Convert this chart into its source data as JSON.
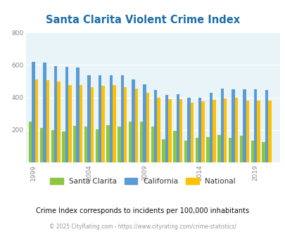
{
  "title": "Santa Clarita Violent Crime Index",
  "years": [
    1999,
    2000,
    2001,
    2002,
    2003,
    2004,
    2005,
    2006,
    2007,
    2008,
    2009,
    2010,
    2011,
    2012,
    2013,
    2014,
    2015,
    2016,
    2017,
    2018,
    2019,
    2020
  ],
  "santa_clarita": [
    250,
    210,
    200,
    190,
    225,
    220,
    205,
    230,
    220,
    250,
    250,
    220,
    145,
    195,
    135,
    150,
    155,
    170,
    150,
    165,
    135,
    125
  ],
  "california": [
    620,
    615,
    595,
    590,
    585,
    535,
    535,
    535,
    535,
    510,
    480,
    445,
    415,
    420,
    400,
    400,
    430,
    455,
    450,
    450,
    450,
    445
  ],
  "national": [
    510,
    505,
    500,
    475,
    475,
    465,
    470,
    475,
    465,
    455,
    430,
    400,
    388,
    388,
    370,
    375,
    385,
    395,
    400,
    380,
    382,
    382
  ],
  "colors": {
    "santa_clarita": "#8dc63f",
    "california": "#5b9bd5",
    "national": "#ffc000"
  },
  "background_color": "#e8f4f8",
  "ylim": [
    0,
    800
  ],
  "yticks": [
    200,
    400,
    600,
    800
  ],
  "xtick_labels": [
    "1999",
    "2004",
    "2009",
    "2014",
    "2019"
  ],
  "xtick_positions": [
    1999,
    2004,
    2009,
    2014,
    2019
  ],
  "legend_labels": [
    "Santa Clarita",
    "California",
    "National"
  ],
  "subtitle": "Crime Index corresponds to incidents per 100,000 inhabitants",
  "footer": "© 2025 CityRating.com - https://www.cityrating.com/crime-statistics/",
  "title_color": "#1a6ea8",
  "subtitle_color": "#111111",
  "footer_color": "#999999"
}
